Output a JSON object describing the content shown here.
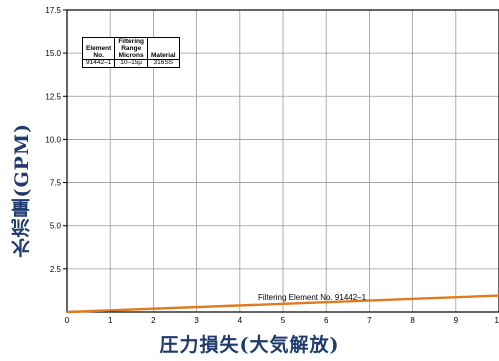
{
  "chart_data": {
    "type": "line",
    "xlabel": "圧力損失(大気解放)",
    "ylabel": "水流量(GPM)",
    "xlim": [
      0,
      10
    ],
    "ylim": [
      0,
      17.5
    ],
    "x_ticks": [
      "0",
      "1",
      "2",
      "3",
      "4",
      "5",
      "6",
      "7",
      "8",
      "9",
      "10"
    ],
    "y_ticks": [
      "2.5",
      "5.0",
      "7.5",
      "10.0",
      "12.5",
      "15.0",
      "17.5"
    ],
    "y_tick_values": [
      2.5,
      5.0,
      7.5,
      10.0,
      12.5,
      15.0,
      17.5
    ],
    "grid": true,
    "series": [
      {
        "name": "Filtering Element No. 91442–1",
        "color": "#e07a1f",
        "x": [
          0,
          10
        ],
        "y": [
          0,
          0.95
        ]
      }
    ],
    "table": {
      "headers": [
        [
          "Element",
          "No."
        ],
        [
          "Filtering",
          "Range",
          "Microns"
        ],
        [
          "Material"
        ]
      ],
      "rows": [
        [
          "91442–1",
          "10–15µ",
          "316SS"
        ]
      ]
    }
  }
}
